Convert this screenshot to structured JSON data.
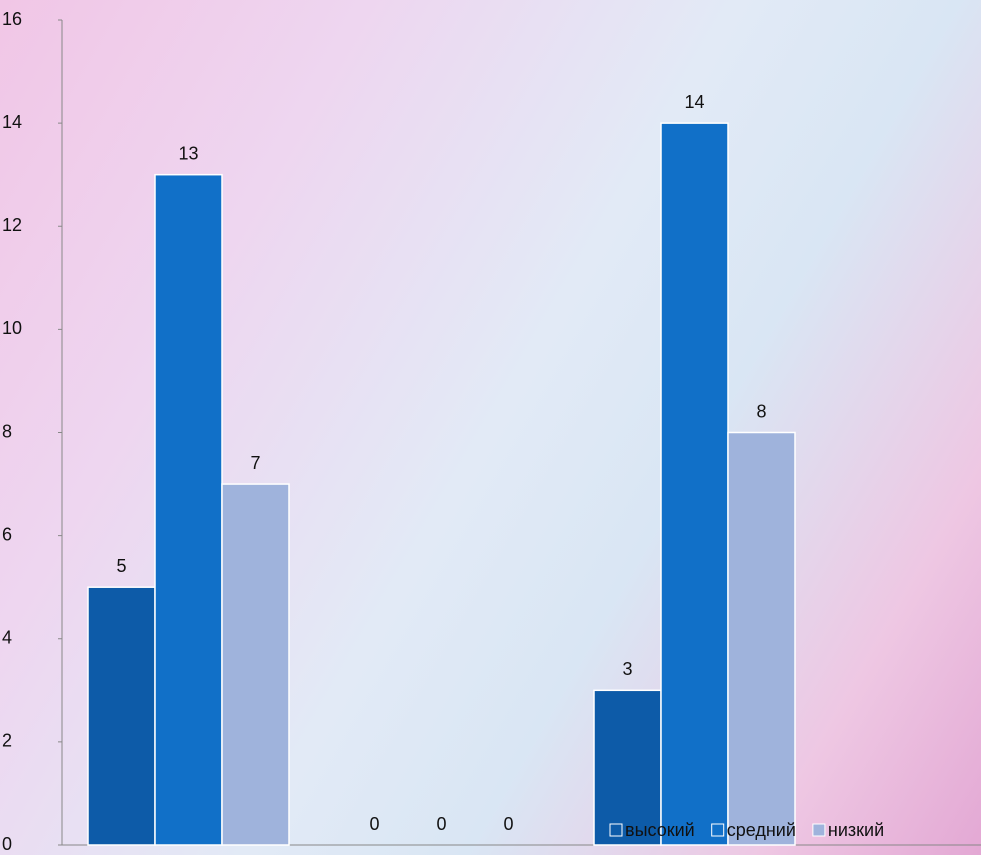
{
  "chart_data": {
    "type": "bar",
    "categories": [
      null,
      null,
      null
    ],
    "series": [
      {
        "name": "высокий",
        "color": "#0d5ba8",
        "values": [
          5,
          0,
          3
        ]
      },
      {
        "name": "средний",
        "color": "#1170c8",
        "values": [
          13,
          0,
          14
        ]
      },
      {
        "name": "низкий",
        "color": "#9fb3dc",
        "values": [
          7,
          0,
          8
        ]
      }
    ],
    "ylim": [
      0,
      16
    ],
    "yticks": [
      0,
      2,
      4,
      6,
      8,
      10,
      12,
      14,
      16
    ],
    "grid": false,
    "data_labels": true,
    "legend": "bottom-right"
  }
}
